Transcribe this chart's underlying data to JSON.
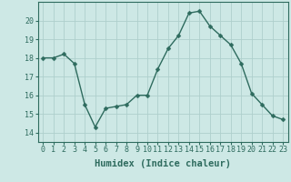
{
  "x": [
    0,
    1,
    2,
    3,
    4,
    5,
    6,
    7,
    8,
    9,
    10,
    11,
    12,
    13,
    14,
    15,
    16,
    17,
    18,
    19,
    20,
    21,
    22,
    23
  ],
  "y": [
    18.0,
    18.0,
    18.2,
    17.7,
    15.5,
    14.3,
    15.3,
    15.4,
    15.5,
    16.0,
    16.0,
    17.4,
    18.5,
    19.2,
    20.4,
    20.5,
    19.7,
    19.2,
    18.7,
    17.7,
    16.1,
    15.5,
    14.9,
    14.7
  ],
  "line_color": "#2e6b5e",
  "marker": "D",
  "markersize": 2.5,
  "linewidth": 1.0,
  "xlabel": "Humidex (Indice chaleur)",
  "xlim": [
    -0.5,
    23.5
  ],
  "ylim": [
    13.5,
    21.0
  ],
  "yticks": [
    14,
    15,
    16,
    17,
    18,
    19,
    20
  ],
  "xticks": [
    0,
    1,
    2,
    3,
    4,
    5,
    6,
    7,
    8,
    9,
    10,
    11,
    12,
    13,
    14,
    15,
    16,
    17,
    18,
    19,
    20,
    21,
    22,
    23
  ],
  "bg_color": "#cde8e5",
  "grid_color": "#aecfcc",
  "text_color": "#2e6b5e",
  "xlabel_fontsize": 7.5,
  "tick_fontsize": 6.0
}
